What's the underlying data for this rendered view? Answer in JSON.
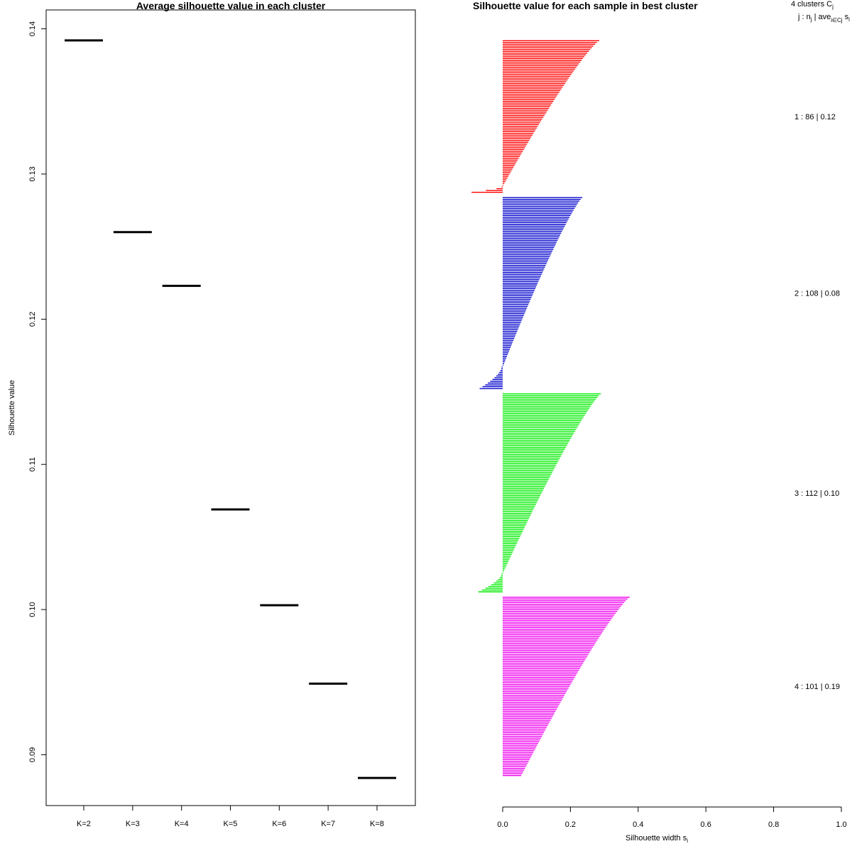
{
  "chart_data": [
    {
      "type": "line",
      "title": "Average silhouette value in each cluster",
      "xlabel": "",
      "ylabel": "Silhouette value",
      "categories": [
        "K=2",
        "K=3",
        "K=4",
        "K=5",
        "K=6",
        "K=7",
        "K=8"
      ],
      "values": [
        0.1392,
        0.126,
        0.1223,
        0.1069,
        0.1003,
        0.0949,
        0.0884
      ],
      "ylim": [
        0.0865,
        0.1413
      ],
      "yticks": [
        "0.09",
        "0.10",
        "0.11",
        "0.12",
        "0.13",
        "0.14"
      ],
      "marker": "horizontal segment per category",
      "color": "#000000"
    },
    {
      "type": "bar",
      "orientation": "horizontal",
      "title": "Silhouette value for each sample in best cluster",
      "xlabel": "Silhouette width s",
      "xlabel_sub": "i",
      "xlim": [
        0.0,
        1.0
      ],
      "xticks": [
        "0.0",
        "0.2",
        "0.4",
        "0.6",
        "0.8",
        "1.0"
      ],
      "header_line1": "4  clusters  C",
      "header_line1_sub": "j",
      "header_line2": "j :  n",
      "header_line2_sub": "j",
      "header_line2_rest": " | ave",
      "header_line2_sub2": "i∈Cj",
      "header_line2_tail": "  s",
      "header_line2_tail_sub": "i",
      "clusters": [
        {
          "label": "1 :   86  |  0.12",
          "n": 86,
          "color": "#ff0000",
          "max": 0.285,
          "min": -0.092,
          "negative_count": 4
        },
        {
          "label": "2 :  108  |  0.08",
          "n": 108,
          "color": "#0000cc",
          "max": 0.235,
          "min": -0.068,
          "negative_count": 13
        },
        {
          "label": "3 :  112  |  0.10",
          "n": 112,
          "color": "#00ee00",
          "max": 0.29,
          "min": -0.072,
          "negative_count": 11
        },
        {
          "label": "4 :  101  |  0.19",
          "n": 101,
          "color": "#ee00ee",
          "max": 0.375,
          "min": 0.055,
          "negative_count": 0
        }
      ]
    }
  ]
}
